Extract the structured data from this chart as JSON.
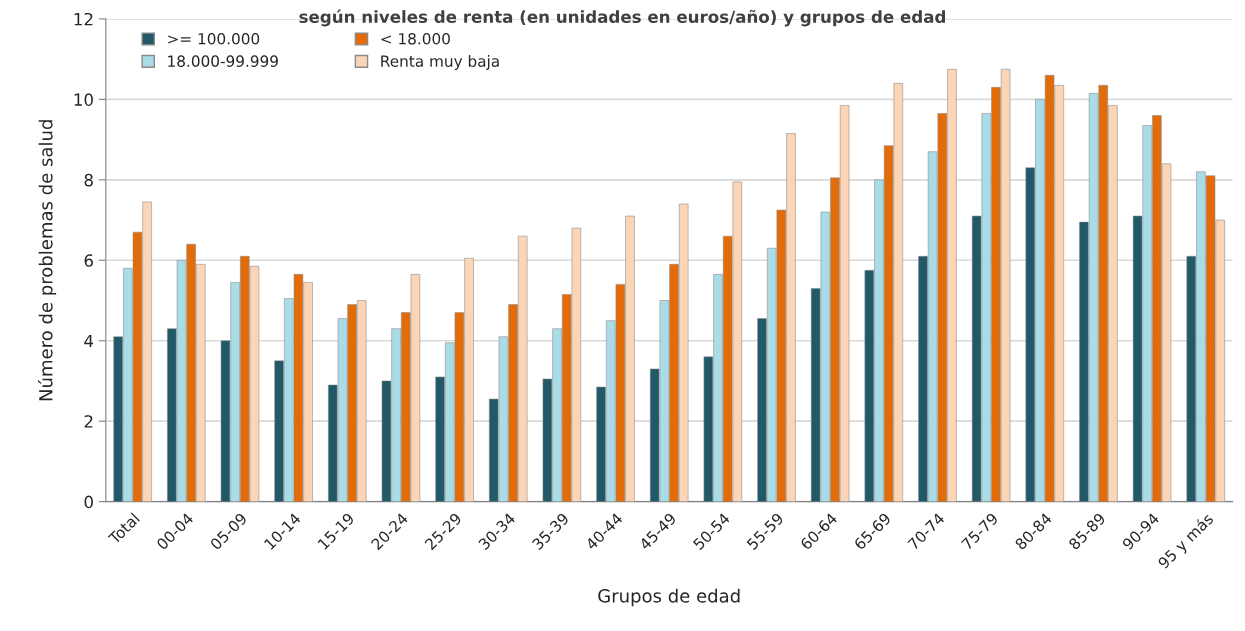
{
  "chart_data": {
    "type": "bar",
    "title": "según niveles de renta (en unidades en euros/año) y grupos de edad",
    "xlabel": "Grupos de edad",
    "ylabel": "Número de problemas de salud",
    "categories": [
      "Total",
      "00-04",
      "05-09",
      "10-14",
      "15-19",
      "20-24",
      "25-29",
      "30-34",
      "35-39",
      "40-44",
      "45-49",
      "50-54",
      "55-59",
      "60-64",
      "65-69",
      "70-74",
      "75-79",
      "80-84",
      "85-89",
      "90-94",
      "95 y más"
    ],
    "series": [
      {
        "name": ">= 100.000",
        "color": "#215968",
        "values": [
          4.1,
          4.3,
          4.0,
          3.5,
          2.9,
          3.0,
          3.1,
          2.55,
          3.05,
          2.85,
          3.3,
          3.6,
          4.55,
          5.3,
          5.75,
          6.1,
          7.1,
          8.3,
          6.95,
          7.1,
          6.1
        ]
      },
      {
        "name": "18.000-99.999",
        "color": "#a9dce6",
        "values": [
          5.8,
          6.0,
          5.45,
          5.05,
          4.55,
          4.3,
          3.95,
          4.1,
          4.3,
          4.5,
          5.0,
          5.65,
          6.3,
          7.2,
          8.0,
          8.7,
          9.65,
          10.0,
          10.15,
          9.35,
          8.2
        ]
      },
      {
        "name": "< 18.000",
        "color": "#e36c0a",
        "values": [
          6.7,
          6.4,
          6.1,
          5.65,
          4.9,
          4.7,
          4.7,
          4.9,
          5.15,
          5.4,
          5.9,
          6.6,
          7.25,
          8.05,
          8.85,
          9.65,
          10.3,
          10.6,
          10.35,
          9.6,
          8.1
        ]
      },
      {
        "name": "Renta muy baja",
        "color": "#fbd5b5",
        "values": [
          7.45,
          5.9,
          5.85,
          5.45,
          5.0,
          5.65,
          6.05,
          6.6,
          6.8,
          7.1,
          7.4,
          7.95,
          9.15,
          9.85,
          10.4,
          10.75,
          10.75,
          10.35,
          9.85,
          8.4,
          7.0
        ]
      }
    ],
    "ylim": [
      0,
      12
    ],
    "yticks": [
      0,
      2,
      4,
      6,
      8,
      10,
      12
    ],
    "grid": "y",
    "legend": "top left"
  }
}
